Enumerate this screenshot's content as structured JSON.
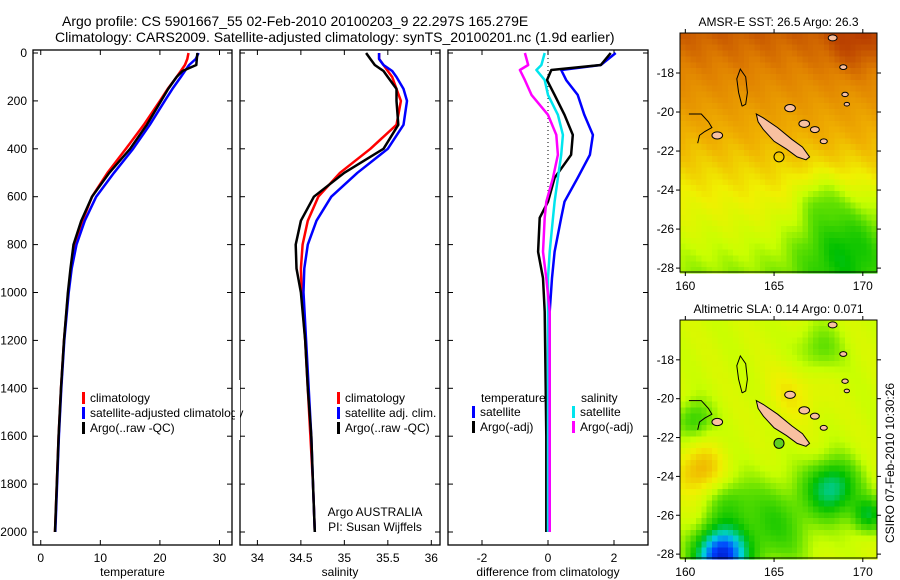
{
  "header": {
    "line1": "Argo profile: CS 5901667_55 02-Feb-2010 20100203_9 22.297S 165.279E",
    "line2": "Climatology: CARS2009. Satellite-adjusted climatology: synTS_20100201.nc (1.9d earlier)"
  },
  "footer": {
    "credit_line1": "Argo AUSTRALIA",
    "credit_line2": "PI: Susan Wijffels",
    "stamp": "CSIRO 07-Feb-2010 10:30:26"
  },
  "colors": {
    "climatology": "#ff0000",
    "satellite": "#0000ff",
    "argo": "#000000",
    "sal_satellite": "#00e5ee",
    "sal_argo": "#ff00ff"
  },
  "chart_data": [
    {
      "type": "line",
      "id": "temperature",
      "xlabel": "temperature",
      "ylabel": "depth",
      "xlim": [
        -1.3,
        32.1
      ],
      "ylim": [
        2000,
        0
      ],
      "xticks": [
        "0",
        "10",
        "20",
        "30"
      ],
      "xtick_values": [
        0,
        10,
        20,
        30
      ],
      "yticks": [
        "0",
        "200",
        "400",
        "600",
        "800",
        "1000",
        "1200",
        "1400",
        "1600",
        "1800",
        "2000"
      ],
      "ytick_values": [
        0,
        200,
        400,
        600,
        800,
        1000,
        1200,
        1400,
        1600,
        1800,
        2000
      ],
      "depth": [
        0,
        25,
        50,
        75,
        100,
        150,
        200,
        300,
        400,
        500,
        600,
        700,
        800,
        900,
        1000,
        1200,
        1400,
        1600,
        1800,
        2000
      ],
      "series": [
        {
          "name": "climatology",
          "color": "#ff0000",
          "values": [
            24.8,
            24.6,
            24.2,
            23.5,
            22.8,
            21.3,
            20.0,
            17.3,
            14.3,
            11.2,
            8.6,
            7.0,
            5.8,
            5.1,
            4.6,
            3.9,
            3.4,
            3.0,
            2.7,
            2.4
          ]
        },
        {
          "name": "satellite-adjusted climatology",
          "color": "#0000ff",
          "values": [
            26.5,
            26.0,
            24.9,
            24.2,
            23.5,
            22.1,
            20.8,
            18.3,
            15.5,
            12.3,
            9.3,
            7.4,
            6.0,
            5.2,
            4.7,
            3.95,
            3.45,
            3.05,
            2.75,
            2.45
          ]
        },
        {
          "name": "Argo(..raw -QC)",
          "color": "#000000",
          "values": [
            26.3,
            26.2,
            26.1,
            23.8,
            22.8,
            21.4,
            20.2,
            17.8,
            15.0,
            11.5,
            8.6,
            6.8,
            5.5,
            5.0,
            4.55,
            3.9,
            3.4,
            3.0,
            2.7,
            2.4
          ]
        }
      ]
    },
    {
      "type": "line",
      "id": "salinity",
      "xlabel": "salinity",
      "xlim": [
        33.8,
        36.1
      ],
      "ylim": [
        2000,
        0
      ],
      "xticks": [
        "34",
        "34.5",
        "35",
        "35.5",
        "36"
      ],
      "xtick_values": [
        34,
        34.5,
        35,
        35.5,
        36
      ],
      "depth": [
        0,
        25,
        50,
        75,
        100,
        150,
        200,
        300,
        400,
        500,
        600,
        700,
        800,
        900,
        1000,
        1200,
        1400,
        1600,
        1800,
        2000
      ],
      "series": [
        {
          "name": "climatology",
          "color": "#ff0000",
          "values": [
            35.4,
            35.4,
            35.45,
            35.5,
            35.55,
            35.6,
            35.65,
            35.6,
            35.3,
            34.95,
            34.7,
            34.58,
            34.52,
            34.5,
            34.51,
            34.55,
            34.58,
            34.61,
            34.64,
            34.66
          ]
        },
        {
          "name": "satellite adj. clim.",
          "color": "#0000ff",
          "values": [
            35.4,
            35.4,
            35.45,
            35.55,
            35.6,
            35.68,
            35.72,
            35.68,
            35.5,
            35.15,
            34.85,
            34.68,
            34.58,
            34.54,
            34.53,
            34.56,
            34.59,
            34.62,
            34.64,
            34.66
          ]
        },
        {
          "name": "Argo(..raw -QC)",
          "color": "#000000",
          "values": [
            35.25,
            35.3,
            35.35,
            35.45,
            35.5,
            35.6,
            35.6,
            35.62,
            35.45,
            35.0,
            34.65,
            34.5,
            34.44,
            34.45,
            34.5,
            34.55,
            34.58,
            34.62,
            34.64,
            34.66
          ]
        }
      ]
    },
    {
      "type": "line",
      "id": "difference",
      "xlabel": "difference from climatology",
      "xlim": [
        -3.03,
        3.03
      ],
      "ylim": [
        2000,
        0
      ],
      "xticks": [
        "-2",
        "0",
        "2"
      ],
      "xtick_values": [
        -2,
        0,
        2
      ],
      "legend_headers": [
        "temperature",
        "salinity"
      ],
      "depth": [
        0,
        50,
        71,
        113,
        175,
        258,
        342,
        425,
        521,
        621,
        688,
        830,
        940,
        1080,
        1300,
        1600,
        2000
      ],
      "series": [
        {
          "name": "satellite",
          "group": "temperature",
          "color": "#0000ff",
          "values": [
            2.05,
            1.6,
            0.4,
            0.55,
            0.9,
            1.1,
            1.36,
            1.27,
            0.9,
            0.5,
            0.4,
            0.2,
            0.12,
            0.05,
            0.05,
            0.05,
            0.05
          ]
        },
        {
          "name": "Argo(-adj)",
          "group": "temperature",
          "color": "#000000",
          "values": [
            1.9,
            1.6,
            0.1,
            -0.03,
            0.2,
            0.5,
            0.75,
            0.7,
            0.2,
            0.0,
            -0.25,
            -0.3,
            -0.15,
            -0.1,
            -0.08,
            -0.05,
            -0.05
          ]
        },
        {
          "name": "satellite",
          "group": "salinity",
          "color": "#00e5ee",
          "values": [
            -0.1,
            -0.2,
            -0.35,
            -0.1,
            0.0,
            0.3,
            0.45,
            0.4,
            0.3,
            0.2,
            0.15,
            0.05,
            0.0,
            0.0,
            0.0,
            0.0,
            0.0
          ]
        },
        {
          "name": "Argo(-adj)",
          "group": "salinity",
          "color": "#ff00ff",
          "values": [
            -0.7,
            -0.6,
            -0.85,
            -0.7,
            -0.5,
            0.0,
            0.25,
            0.3,
            0.15,
            -0.05,
            -0.1,
            -0.15,
            -0.05,
            0.05,
            0.05,
            0.05,
            0.05
          ]
        }
      ]
    },
    {
      "type": "heatmap",
      "id": "sst_map",
      "title": "AMSR-E SST: 26.5 Argo: 26.3",
      "satellite_value": 26.5,
      "argo_value": 26.3,
      "xlim": [
        159.7,
        170.8
      ],
      "ylim": [
        -28.2,
        -15.95
      ],
      "xticks": [
        "160",
        "165",
        "170"
      ],
      "xtick_values": [
        160,
        165,
        170
      ],
      "yticks": [
        "-18",
        "-20",
        "-22",
        "-24",
        "-26",
        "-28"
      ],
      "ytick_values": [
        -18,
        -20,
        -22,
        -24,
        -26,
        -28
      ],
      "float_position": {
        "lon": 165.279,
        "lat": -22.297
      }
    },
    {
      "type": "heatmap",
      "id": "sla_map",
      "title": "Altimetric SLA: 0.14 Argo: 0.071",
      "satellite_value": 0.14,
      "argo_value": 0.071,
      "xlim": [
        159.7,
        170.8
      ],
      "ylim": [
        -28.2,
        -15.95
      ],
      "xticks": [
        "160",
        "165",
        "170"
      ],
      "xtick_values": [
        160,
        165,
        170
      ],
      "yticks": [
        "-18",
        "-20",
        "-22",
        "-24",
        "-26",
        "-28"
      ],
      "ytick_values": [
        -18,
        -20,
        -22,
        -24,
        -26,
        -28
      ],
      "float_position": {
        "lon": 165.279,
        "lat": -22.297
      }
    }
  ]
}
